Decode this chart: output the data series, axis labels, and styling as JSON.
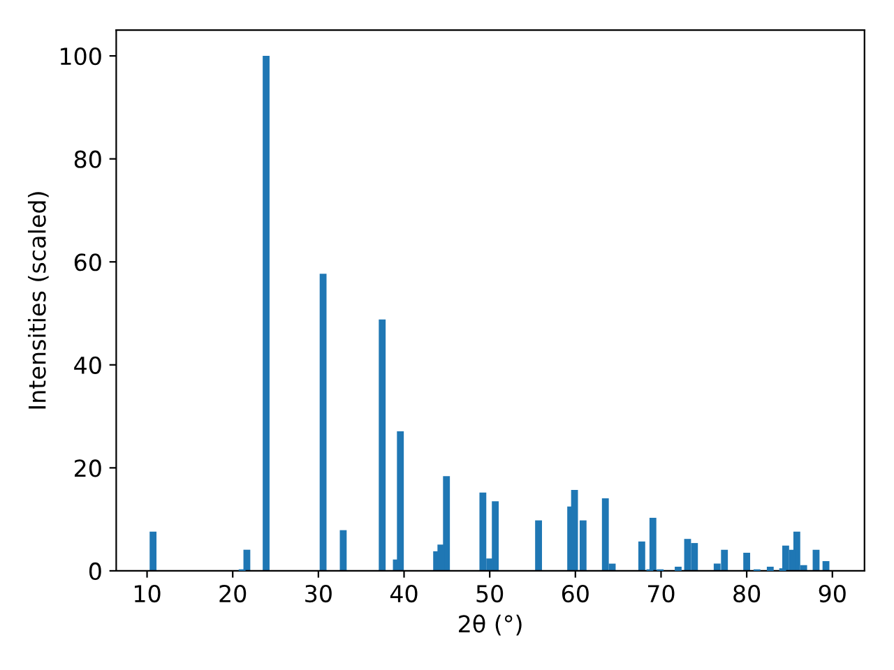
{
  "chart_data": {
    "type": "bar",
    "xlabel": "2θ (°)",
    "ylabel": "Intensities (scaled)",
    "x": [
      10.7,
      21.1,
      21.65,
      23.9,
      30.55,
      32.9,
      37.45,
      39.1,
      39.57,
      43.8,
      44.3,
      44.95,
      49.2,
      50.0,
      50.65,
      55.7,
      59.45,
      59.9,
      60.9,
      63.5,
      64.3,
      67.75,
      68.7,
      69.05,
      69.9,
      72.0,
      73.1,
      73.9,
      76.55,
      77.4,
      80.0,
      81.2,
      82.75,
      84.2,
      84.55,
      85.35,
      85.85,
      86.65,
      88.1,
      89.25
    ],
    "values": [
      7.6,
      0.3,
      4.1,
      100,
      57.7,
      7.9,
      48.8,
      2.2,
      27.1,
      3.8,
      5.1,
      18.4,
      15.2,
      2.4,
      13.5,
      9.8,
      12.5,
      15.7,
      9.8,
      14.1,
      1.4,
      5.7,
      0.3,
      10.3,
      0.3,
      0.8,
      6.2,
      5.4,
      1.4,
      4.1,
      3.5,
      0.3,
      0.8,
      0.5,
      4.9,
      4.1,
      7.6,
      1.1,
      4.1,
      1.9
    ],
    "color": "#1f77b4",
    "xlim": [
      6.4,
      93.75
    ],
    "ylim": [
      0,
      105
    ],
    "xticks": [
      10,
      20,
      30,
      40,
      50,
      60,
      70,
      80,
      90
    ],
    "yticks": [
      0,
      20,
      40,
      60,
      80,
      100
    ],
    "grid": false
  }
}
